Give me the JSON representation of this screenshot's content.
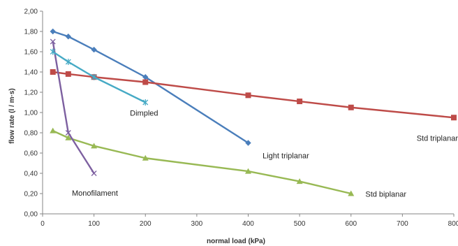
{
  "chart_data": {
    "type": "line",
    "xlabel": "normal load (kPa)",
    "ylabel": "flow rate (l / m·s)",
    "xlim": [
      0,
      800
    ],
    "ylim": [
      0,
      2.0
    ],
    "x_ticks": [
      "0",
      "100",
      "200",
      "300",
      "400",
      "500",
      "600",
      "700",
      "800"
    ],
    "y_ticks": [
      "0,00",
      "0,20",
      "0,40",
      "0,60",
      "0,80",
      "1,00",
      "1,20",
      "1,40",
      "1,60",
      "1,80",
      "2,00"
    ],
    "grid": false,
    "legend": "inline labels",
    "series": [
      {
        "name": "Light triplanar",
        "color": "#4a7ebb",
        "marker": "diamond",
        "x": [
          20,
          50,
          100,
          200,
          400
        ],
        "y": [
          1.8,
          1.75,
          1.62,
          1.35,
          0.7
        ]
      },
      {
        "name": "Std triplanar",
        "color": "#be4b48",
        "marker": "square",
        "x": [
          20,
          50,
          100,
          200,
          400,
          500,
          600,
          800
        ],
        "y": [
          1.4,
          1.38,
          1.35,
          1.3,
          1.17,
          1.11,
          1.05,
          0.95
        ]
      },
      {
        "name": "Std biplanar",
        "color": "#98b954",
        "marker": "triangle",
        "x": [
          20,
          50,
          100,
          200,
          400,
          500,
          600
        ],
        "y": [
          0.82,
          0.75,
          0.67,
          0.55,
          0.42,
          0.32,
          0.2
        ]
      },
      {
        "name": "Monofilament",
        "color": "#7d60a0",
        "marker": "x",
        "x": [
          20,
          50,
          100
        ],
        "y": [
          1.7,
          0.8,
          0.4
        ]
      },
      {
        "name": "Dimpled",
        "color": "#46aac5",
        "marker": "star",
        "x": [
          20,
          50,
          100,
          200
        ],
        "y": [
          1.6,
          1.5,
          1.35,
          1.1
        ]
      }
    ]
  }
}
